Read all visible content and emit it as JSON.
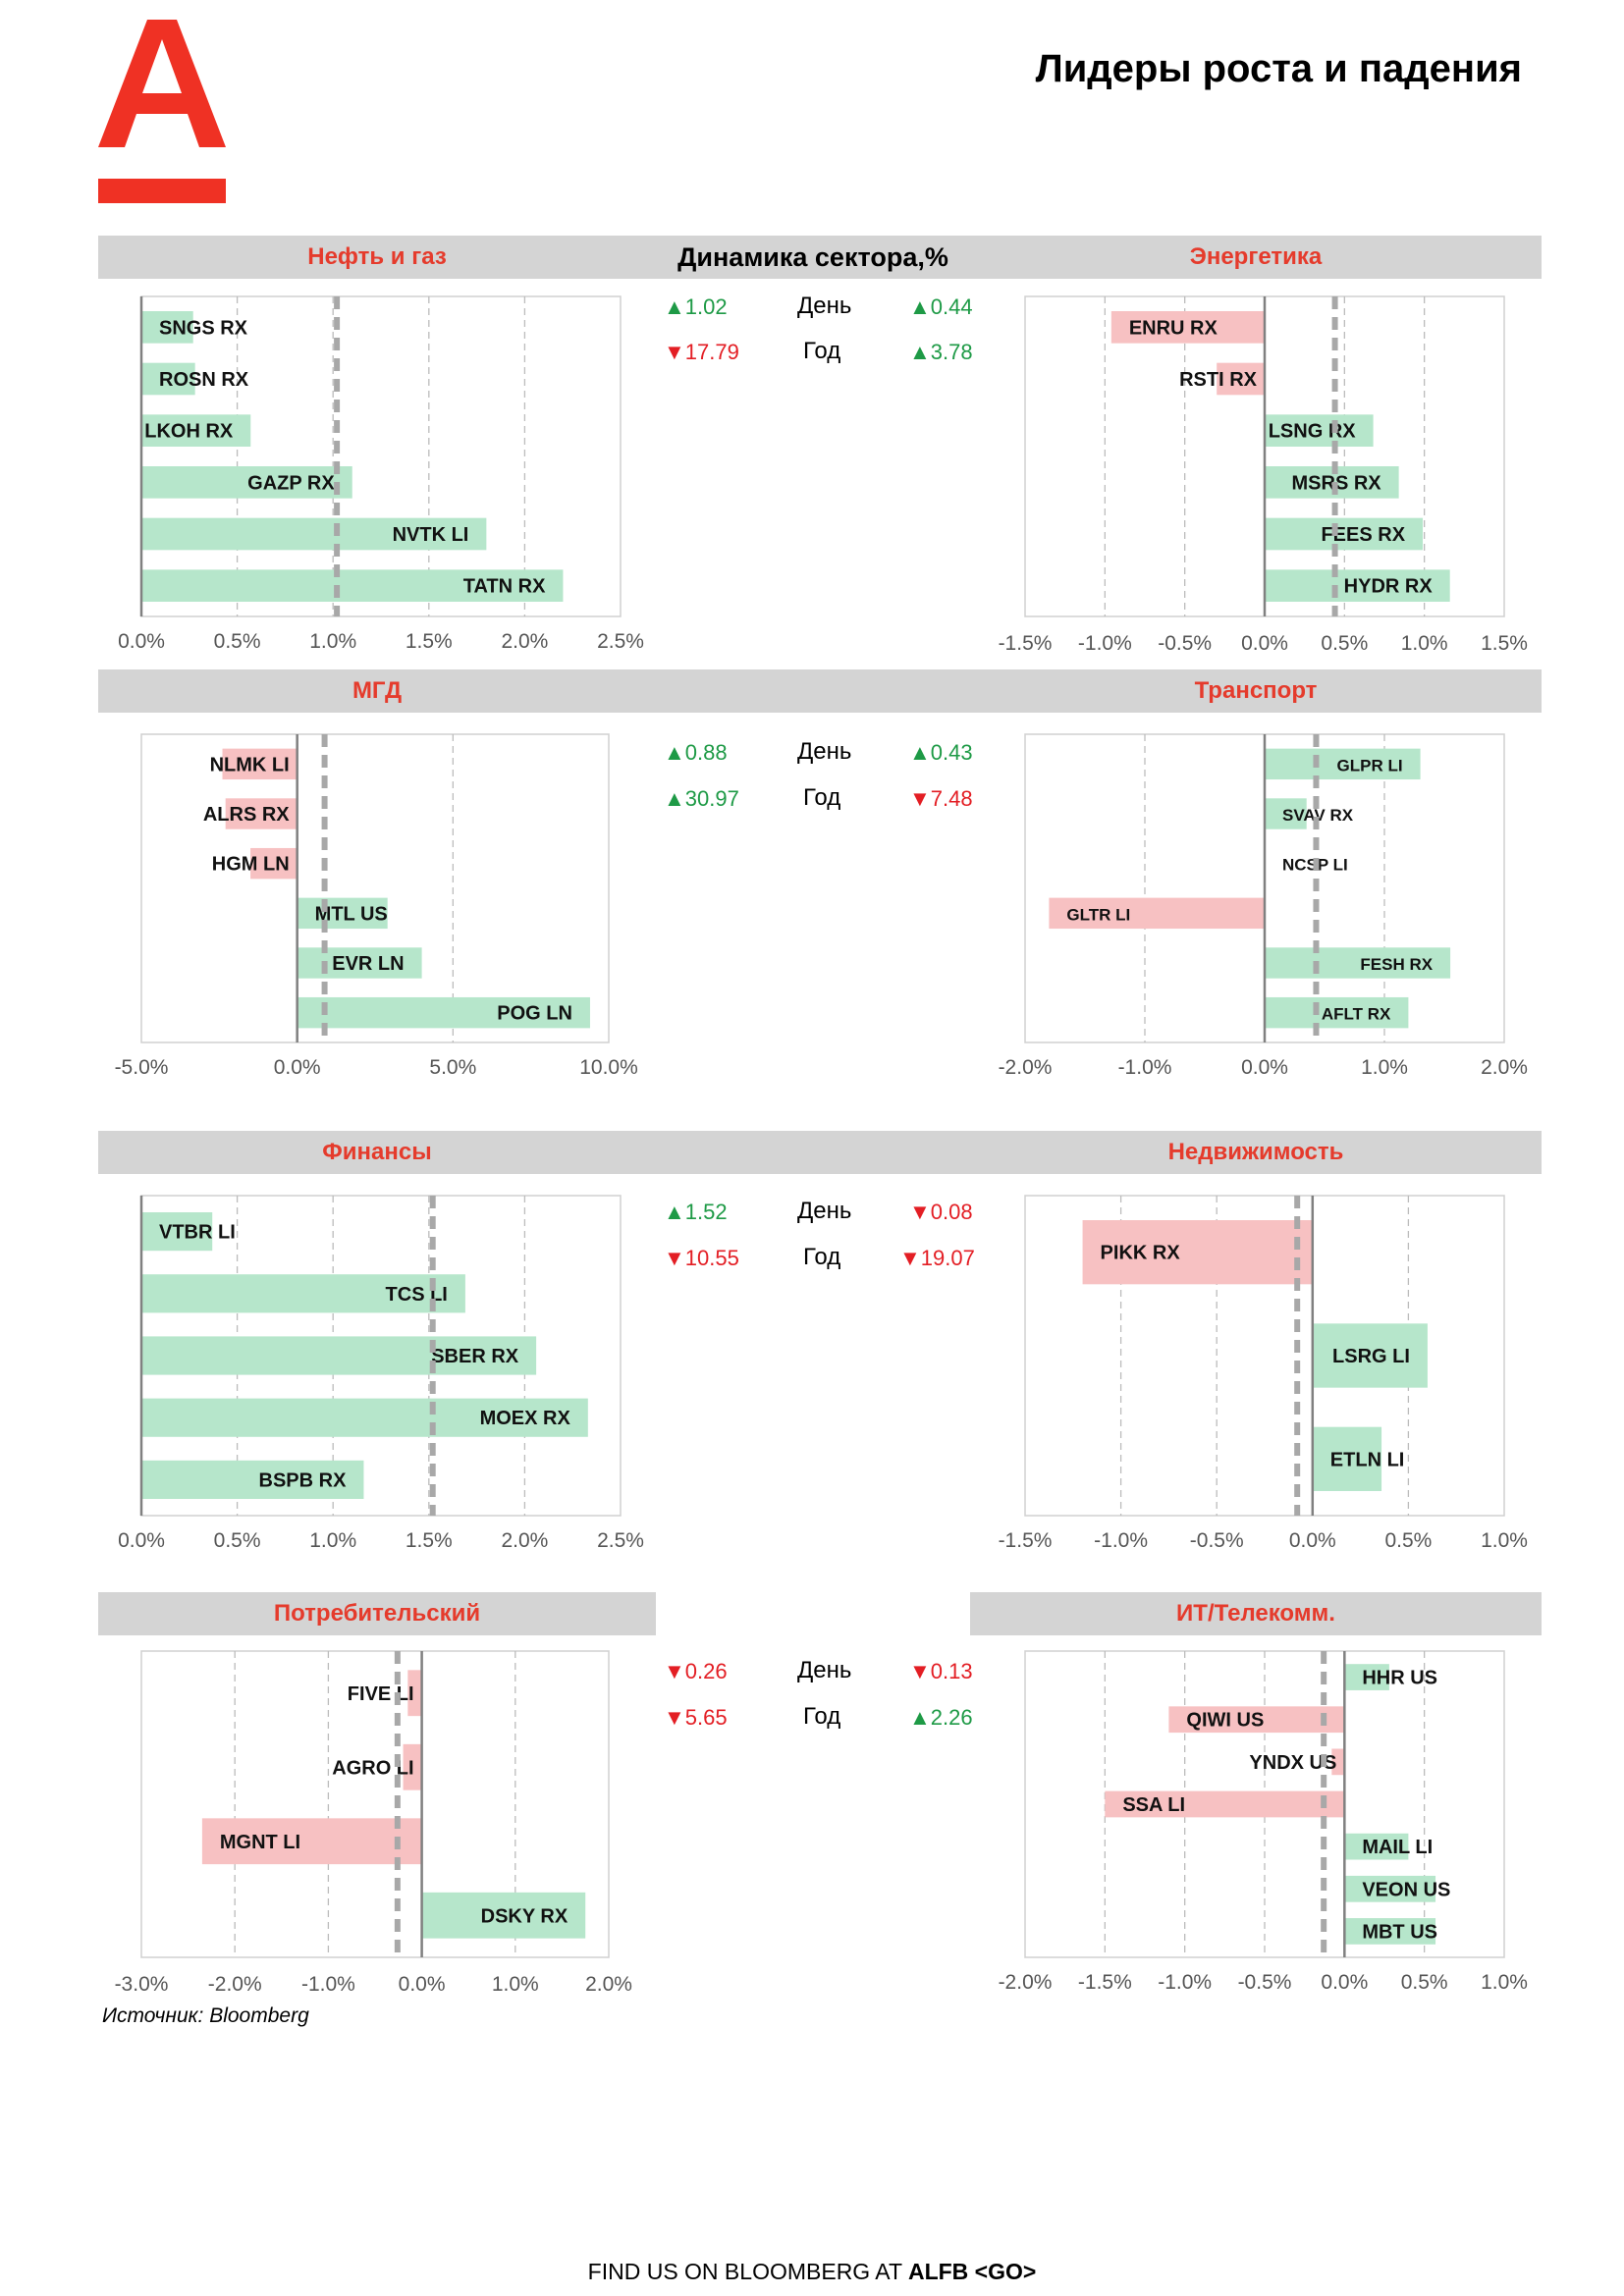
{
  "page": {
    "title": "Лидеры роста и падения",
    "dynamics_header": "Динамика сектора,%",
    "source": "Источник: Bloomberg",
    "footer_prefix": "FIND US ON BLOOMBERG AT ",
    "footer_bold": "ALFB <GO>",
    "day_label": "День",
    "year_label": "Год",
    "up_color": "#1e9a46",
    "down_color": "#e31e24",
    "brand_color": "#ef3124"
  },
  "stats": [
    {
      "day": [
        "▲",
        "1.02",
        "▲",
        "0.44"
      ],
      "year": [
        "▼",
        "17.79",
        "▲",
        "3.78"
      ]
    },
    {
      "day": [
        "▲",
        "0.88",
        "▲",
        "0.43"
      ],
      "year": [
        "▲",
        "30.97",
        "▼",
        "7.48"
      ]
    },
    {
      "day": [
        "▲",
        "1.52",
        "▼",
        "0.08"
      ],
      "year": [
        "▼",
        "10.55",
        "▼",
        "19.07"
      ]
    },
    {
      "day": [
        "▼",
        "0.26",
        "▼",
        "0.13"
      ],
      "year": [
        "▼",
        "5.65",
        "▲",
        "2.26"
      ]
    }
  ],
  "chart_data": [
    {
      "type": "bar",
      "orientation": "horizontal",
      "title": "Нефть и газ",
      "unit": "%",
      "categories": [
        "SNGS RX",
        "ROSN RX",
        "LKOH RX",
        "GAZP RX",
        "NVTK LI",
        "TATN RX"
      ],
      "values": [
        0.27,
        0.28,
        0.57,
        1.1,
        1.8,
        2.2
      ],
      "xlim": [
        0,
        2.5
      ],
      "ticks": [
        "0.0%",
        "0.5%",
        "1.0%",
        "1.5%",
        "2.0%",
        "2.5%"
      ],
      "sector_change": 1.02
    },
    {
      "type": "bar",
      "orientation": "horizontal",
      "title": "Энергетика",
      "unit": "%",
      "categories": [
        "ENRU RX",
        "RSTI RX",
        "LSNG RX",
        "MSRS RX",
        "FEES RX",
        "HYDR RX"
      ],
      "values": [
        -0.96,
        -0.3,
        0.68,
        0.84,
        0.99,
        1.16
      ],
      "xlim": [
        -1.5,
        1.5
      ],
      "ticks": [
        "-1.5%",
        "-1.0%",
        "-0.5%",
        "0.0%",
        "0.5%",
        "1.0%",
        "1.5%"
      ],
      "sector_change": 0.44
    },
    {
      "type": "bar",
      "orientation": "horizontal",
      "title": "МГД",
      "unit": "%",
      "categories": [
        "NLMK LI",
        "ALRS RX",
        "HGM LN",
        "MTL US",
        "EVR LN",
        "POG LN"
      ],
      "values": [
        -2.4,
        -2.3,
        -1.5,
        2.9,
        4.0,
        9.4
      ],
      "xlim": [
        -5,
        10
      ],
      "ticks": [
        "-5.0%",
        "0.0%",
        "5.0%",
        "10.0%"
      ],
      "sector_change": 0.88
    },
    {
      "type": "bar",
      "orientation": "horizontal",
      "title": "Транспорт",
      "unit": "%",
      "categories": [
        "GLPR LI",
        "SVAV RX",
        "NCSP LI",
        "GLTR LI",
        "FESH RX",
        "AFLT RX"
      ],
      "values": [
        1.3,
        0.35,
        0.0,
        -1.8,
        1.55,
        1.2
      ],
      "xlim": [
        -2,
        2
      ],
      "ticks": [
        "-2.0%",
        "-1.0%",
        "0.0%",
        "1.0%",
        "2.0%"
      ],
      "sector_change": 0.43
    },
    {
      "type": "bar",
      "orientation": "horizontal",
      "title": "Финансы",
      "unit": "%",
      "categories": [
        "VTBR LI",
        "TCS LI",
        "SBER RX",
        "MOEX RX",
        "BSPB RX"
      ],
      "values": [
        0.37,
        1.69,
        2.06,
        2.33,
        1.16
      ],
      "xlim": [
        0,
        2.5
      ],
      "ticks": [
        "0.0%",
        "0.5%",
        "1.0%",
        "1.5%",
        "2.0%",
        "2.5%"
      ],
      "sector_change": 1.52
    },
    {
      "type": "bar",
      "orientation": "horizontal",
      "title": "Недвижимость",
      "unit": "%",
      "categories": [
        "PIKK RX",
        "LSRG LI",
        "ETLN LI"
      ],
      "values": [
        -1.2,
        0.6,
        0.36
      ],
      "xlim": [
        -1.5,
        1.0
      ],
      "ticks": [
        "-1.5%",
        "-1.0%",
        "-0.5%",
        "0.0%",
        "0.5%",
        "1.0%"
      ],
      "sector_change": -0.08
    },
    {
      "type": "bar",
      "orientation": "horizontal",
      "title": "Потребительский",
      "unit": "%",
      "categories": [
        "FIVE LI",
        "AGRO LI",
        "MGNT LI",
        "DSKY RX"
      ],
      "values": [
        -0.15,
        -0.2,
        -2.35,
        1.75
      ],
      "xlim": [
        -3,
        2
      ],
      "ticks": [
        "-3.0%",
        "-2.0%",
        "-1.0%",
        "0.0%",
        "1.0%",
        "2.0%"
      ],
      "sector_change": -0.26
    },
    {
      "type": "bar",
      "orientation": "horizontal",
      "title": "ИТ/Телекомм.",
      "unit": "%",
      "categories": [
        "HHR US",
        "QIWI US",
        "YNDX US",
        "SSA LI",
        "MAIL LI",
        "VEON US",
        "MBT US"
      ],
      "values": [
        0.28,
        -1.1,
        -0.08,
        -1.5,
        0.4,
        0.57,
        0.57
      ],
      "xlim": [
        -2,
        1
      ],
      "ticks": [
        "-2.0%",
        "-1.5%",
        "-1.0%",
        "-0.5%",
        "0.0%",
        "0.5%",
        "1.0%"
      ],
      "sector_change": -0.13
    }
  ]
}
